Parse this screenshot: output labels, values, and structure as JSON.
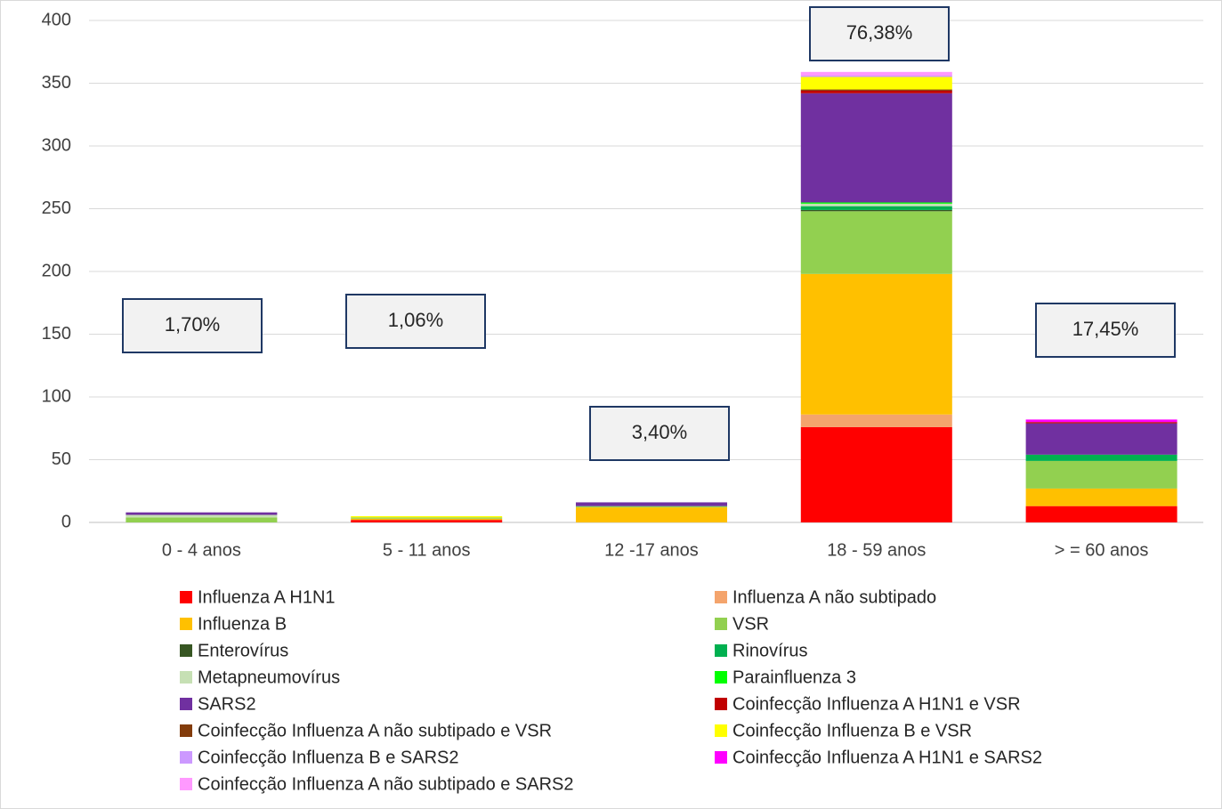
{
  "chart_data": {
    "type": "stacked_bar",
    "categories": [
      "0 - 4  anos",
      "5 - 11 anos",
      "12 -17 anos",
      "18 - 59 anos",
      "> = 60 anos"
    ],
    "series": [
      {
        "name": "Influenza A H1N1",
        "color": "#ff0000",
        "values": [
          0,
          2,
          0,
          76,
          13
        ]
      },
      {
        "name": "Influenza A não subtipado",
        "color": "#f4a46c",
        "values": [
          0,
          0,
          0,
          10,
          0
        ]
      },
      {
        "name": "Influenza B",
        "color": "#ffc000",
        "values": [
          0,
          1,
          12,
          112,
          14
        ]
      },
      {
        "name": "VSR",
        "color": "#92d050",
        "values": [
          4,
          1,
          1,
          50,
          22
        ]
      },
      {
        "name": "Enterovírus",
        "color": "#375623",
        "values": [
          0,
          0,
          0,
          1,
          0
        ]
      },
      {
        "name": "Rinovírus",
        "color": "#00b050",
        "values": [
          0,
          0,
          0,
          3,
          5
        ]
      },
      {
        "name": "Metapneumovírus",
        "color": "#c6e0b4",
        "values": [
          2,
          0,
          0,
          2,
          0
        ]
      },
      {
        "name": "Parainfluenza 3",
        "color": "#00ff00",
        "values": [
          0,
          0,
          0,
          1,
          0
        ]
      },
      {
        "name": "SARS2",
        "color": "#7030a0",
        "values": [
          2,
          0,
          3,
          87,
          25
        ]
      },
      {
        "name": "Coinfecção Influenza A H1N1 e  VSR",
        "color": "#c00000",
        "values": [
          0,
          0,
          0,
          2,
          1
        ]
      },
      {
        "name": "Coinfecção Influenza A não subtipado e  VSR",
        "color": "#833c0b",
        "values": [
          0,
          0,
          0,
          1,
          0
        ]
      },
      {
        "name": "Coinfecção Influenza B e  VSR",
        "color": "#ffff00",
        "values": [
          0,
          1,
          0,
          10,
          0
        ]
      },
      {
        "name": "Coinfecção Influenza B e  SARS2",
        "color": "#cc99ff",
        "values": [
          0,
          0,
          0,
          1,
          0
        ]
      },
      {
        "name": "Coinfecção Influenza A H1N1 e  SARS2",
        "color": "#ff00ff",
        "values": [
          0,
          0,
          0,
          0,
          2
        ]
      },
      {
        "name": "Coinfecção Influenza A não subtipado e  SARS2",
        "color": "#ff99ff",
        "values": [
          0,
          0,
          0,
          3,
          0
        ]
      }
    ],
    "annotations": [
      "1,70%",
      "1,06%",
      "3,40%",
      "76,38%",
      "17,45%"
    ],
    "ylim": [
      0,
      400
    ],
    "yticks": [
      0,
      50,
      100,
      150,
      200,
      250,
      300,
      350,
      400
    ],
    "grid": true,
    "legend": "bottom"
  }
}
